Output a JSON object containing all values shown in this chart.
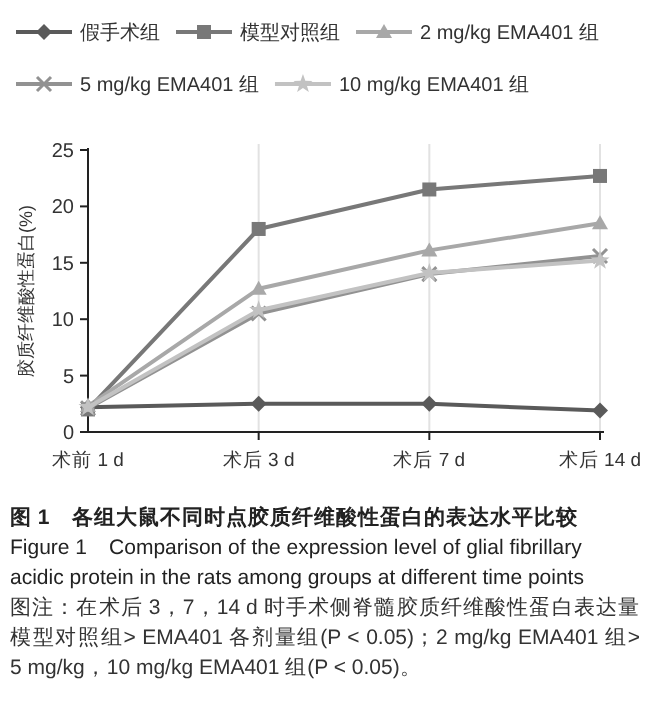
{
  "chart_data": {
    "type": "line",
    "ylabel": "胶质纤维酸性蛋白(%)",
    "categories": [
      "术前 1 d",
      "术后 3 d",
      "术后 7 d",
      "术后 14 d"
    ],
    "ylim": [
      0,
      25
    ],
    "yticks": [
      0,
      5,
      10,
      15,
      20,
      25
    ],
    "grid": "x",
    "legend": "top",
    "line_style": "solid",
    "series": [
      {
        "name": "假手术组",
        "color": "#5a5a5a",
        "marker": "diamond",
        "values": [
          2.2,
          2.5,
          2.5,
          1.9
        ]
      },
      {
        "name": "模型对照组",
        "color": "#787878",
        "marker": "square",
        "values": [
          2.0,
          18.0,
          21.5,
          22.7
        ]
      },
      {
        "name": "2 mg/kg EMA401 组",
        "color": "#a8a8a8",
        "marker": "triangle",
        "values": [
          2.3,
          12.7,
          16.1,
          18.5
        ]
      },
      {
        "name": "5 mg/kg EMA401 组",
        "color": "#929292",
        "marker": "cross",
        "values": [
          2.1,
          10.5,
          14.0,
          15.6
        ]
      },
      {
        "name": "10 mg/kg EMA401 组",
        "color": "#c2c2c2",
        "marker": "star",
        "values": [
          2.2,
          10.8,
          14.1,
          15.2
        ]
      }
    ],
    "title": "图 1　各组大鼠不同时点胶质纤维酸性蛋白的表达水平比较",
    "subtitle": "Figure 1　Comparison of the expression level of glial fibrillary acidic protein in the rats among groups at different time points",
    "annotations": [
      "图注：在术后 3，7，14 d 时手术侧脊髓胶质纤维酸性蛋白表达量模型对照组> EMA401 各剂量组(P < 0.05)；2 mg/kg EMA401 组> 5 mg/kg，10 mg/kg EMA401 组(P < 0.05)。"
    ]
  }
}
